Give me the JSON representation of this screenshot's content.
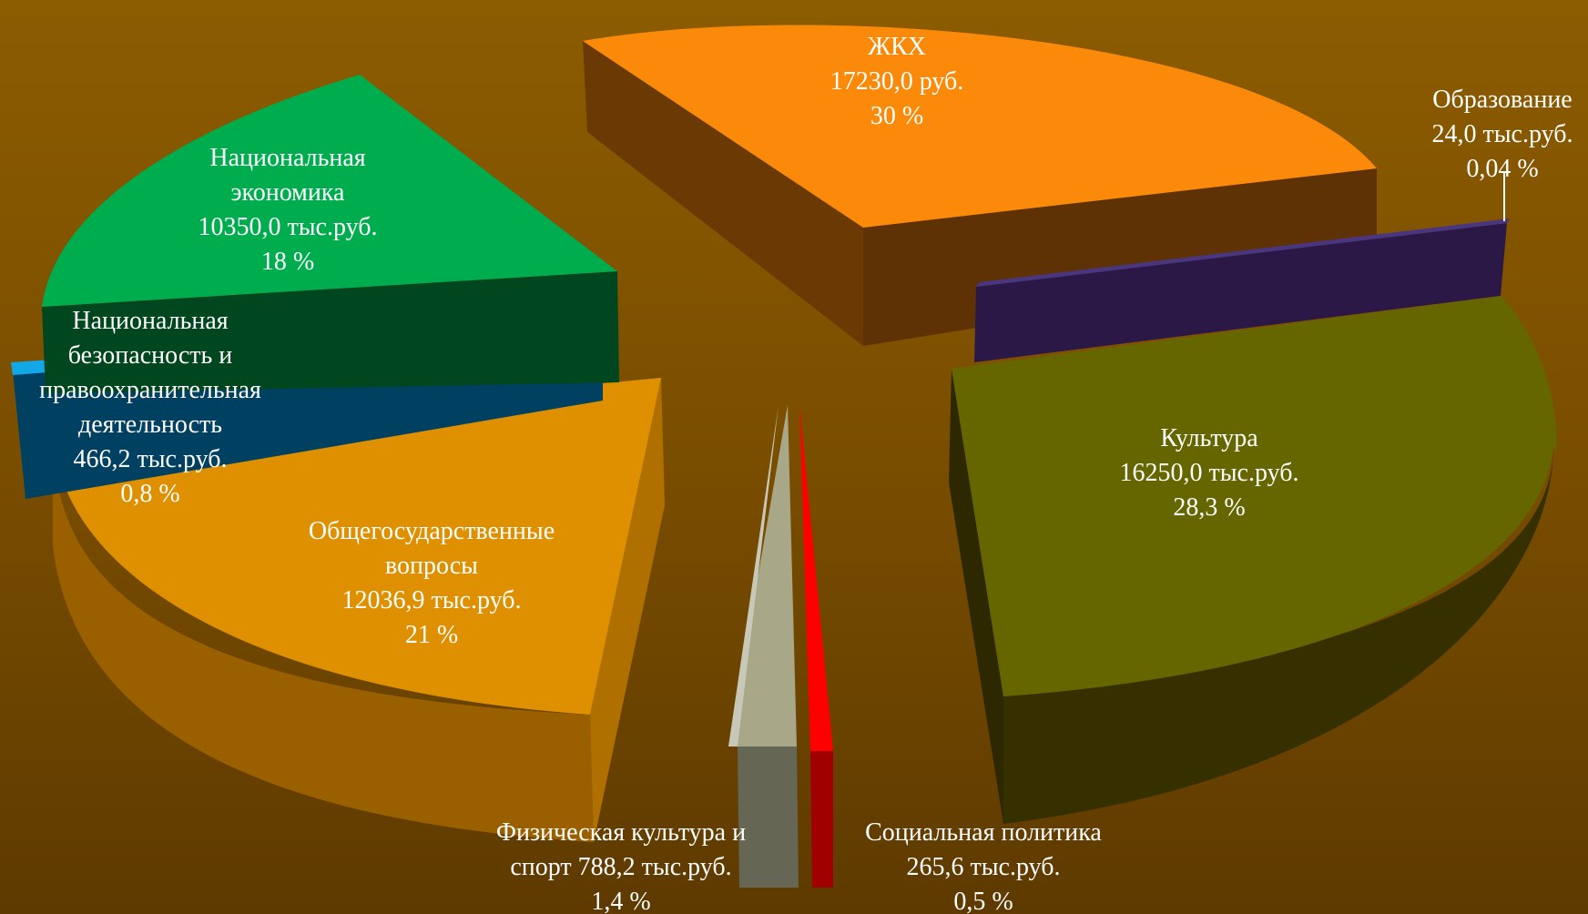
{
  "chart_data": {
    "type": "pie",
    "style": "exploded-3d",
    "title": "",
    "slices": [
      {
        "name": "ЖКХ",
        "value_text": "17230,0 руб.",
        "percent_text": "30 %",
        "value": 17230.0,
        "percent": 30,
        "color_top": "#fb8a0a",
        "color_side": "#6b3a04"
      },
      {
        "name": "Образование",
        "value_text": "24,0 тыс.руб.",
        "percent_text": "0,04 %",
        "value": 24.0,
        "percent": 0.04,
        "color_top": "#3e2a6e",
        "color_side": "#2c1846"
      },
      {
        "name": "Культура",
        "value_text": "16250,0 тыс.руб.",
        "percent_text": "28,3 %",
        "value": 16250.0,
        "percent": 28.3,
        "color_top": "#666600",
        "color_side": "#363000"
      },
      {
        "name": "Социальная политика",
        "value_text": "265,6 тыс.руб.",
        "percent_text": "0,5 %",
        "value": 265.6,
        "percent": 0.5,
        "color_top": "#ff0000",
        "color_side": "#a00000"
      },
      {
        "name": "Физическая культура и спорт",
        "value_text": "788,2 тыс.руб.",
        "percent_text": "1,4 %",
        "value": 788.2,
        "percent": 1.4,
        "color_top": "#a8a888",
        "color_side": "#666655"
      },
      {
        "name": "Общегосударственные вопросы",
        "value_text": "12036,9 тыс.руб.",
        "percent_text": "21 %",
        "value": 12036.9,
        "percent": 21,
        "color_top": "#de9000",
        "color_side": "#9a6000"
      },
      {
        "name": "Национальная безопасность и правоохранительная деятельность",
        "value_text": "466,2 тыс.руб.",
        "percent_text": "0,8 %",
        "value": 466.2,
        "percent": 0.8,
        "color_top": "#12a8e8",
        "color_side": "#004060"
      },
      {
        "name": "Национальная экономика",
        "value_text": "10350,0 тыс.руб.",
        "percent_text": "18 %",
        "value": 10350.0,
        "percent": 18,
        "color_top": "#00ad4e",
        "color_side": "#00461e"
      }
    ],
    "labels": {
      "zhkh": [
        "ЖКХ",
        "17230,0  руб.",
        "30 %"
      ],
      "education": [
        "Образование",
        "24,0  тыс.руб.",
        "0,04 %"
      ],
      "culture": [
        "Культура",
        "16250,0  тыс.руб.",
        "28,3 %"
      ],
      "social": [
        "Социальная  политика",
        "265,6  тыс.руб.",
        "0,5 %"
      ],
      "sport": [
        "Физическая культура и",
        "спорт 788,2  тыс.руб.",
        "1,4 %"
      ],
      "general": [
        "Общегосударственные",
        "вопросы",
        "12036,9  тыс.руб.",
        "21 %"
      ],
      "security": [
        "Национальная",
        "безопасность и",
        "правоохранительная",
        "деятельность",
        "466,2  тыс.руб.",
        "0,8 %"
      ],
      "economy": [
        "Национальная",
        "экономика",
        "10350,0  тыс.руб.",
        "18 %"
      ]
    },
    "legend": "none"
  }
}
